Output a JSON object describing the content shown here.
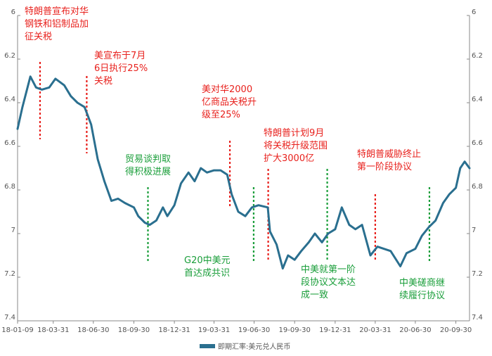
{
  "chart_data": {
    "type": "line",
    "ylim": [
      6,
      7.4
    ],
    "y_inverted": true,
    "y_ticks": [
      "6",
      "6.2",
      "6.4",
      "6.6",
      "6.8",
      "7",
      "7.2",
      "7.4"
    ],
    "x_ticks": [
      "18-01-09",
      "18-03-31",
      "18-06-30",
      "18-09-30",
      "18-12-31",
      "19-03-31",
      "19-06-30",
      "19-09-30",
      "19-12-31",
      "20-03-31",
      "20-06-30",
      "20-09-30"
    ],
    "x_range": [
      "2018-01-09",
      "2020-10-31"
    ],
    "grid": false,
    "legend_position": "bottom",
    "series": [
      {
        "name": "即期汇率:美元兑人民币",
        "color": "#2a6f8f",
        "points": [
          [
            "2018-01-09",
            6.52
          ],
          [
            "2018-01-20",
            6.42
          ],
          [
            "2018-02-07",
            6.28
          ],
          [
            "2018-02-20",
            6.33
          ],
          [
            "2018-03-05",
            6.34
          ],
          [
            "2018-03-22",
            6.33
          ],
          [
            "2018-04-05",
            6.29
          ],
          [
            "2018-04-25",
            6.32
          ],
          [
            "2018-05-10",
            6.37
          ],
          [
            "2018-05-25",
            6.4
          ],
          [
            "2018-06-10",
            6.42
          ],
          [
            "2018-06-25",
            6.5
          ],
          [
            "2018-07-10",
            6.66
          ],
          [
            "2018-07-25",
            6.76
          ],
          [
            "2018-08-10",
            6.85
          ],
          [
            "2018-08-25",
            6.84
          ],
          [
            "2018-09-10",
            6.86
          ],
          [
            "2018-09-30",
            6.88
          ],
          [
            "2018-10-10",
            6.92
          ],
          [
            "2018-10-25",
            6.95
          ],
          [
            "2018-11-05",
            6.96
          ],
          [
            "2018-11-20",
            6.94
          ],
          [
            "2018-12-05",
            6.88
          ],
          [
            "2018-12-15",
            6.92
          ],
          [
            "2018-12-31",
            6.87
          ],
          [
            "2019-01-15",
            6.77
          ],
          [
            "2019-02-01",
            6.72
          ],
          [
            "2019-02-15",
            6.76
          ],
          [
            "2019-03-01",
            6.7
          ],
          [
            "2019-03-15",
            6.72
          ],
          [
            "2019-03-31",
            6.71
          ],
          [
            "2019-04-15",
            6.71
          ],
          [
            "2019-04-30",
            6.73
          ],
          [
            "2019-05-10",
            6.82
          ],
          [
            "2019-05-25",
            6.9
          ],
          [
            "2019-06-10",
            6.92
          ],
          [
            "2019-06-25",
            6.88
          ],
          [
            "2019-07-10",
            6.87
          ],
          [
            "2019-07-31",
            6.88
          ],
          [
            "2019-08-05",
            6.99
          ],
          [
            "2019-08-20",
            7.05
          ],
          [
            "2019-09-03",
            7.16
          ],
          [
            "2019-09-15",
            7.1
          ],
          [
            "2019-09-30",
            7.12
          ],
          [
            "2019-10-15",
            7.08
          ],
          [
            "2019-11-01",
            7.04
          ],
          [
            "2019-11-15",
            7.0
          ],
          [
            "2019-12-01",
            7.04
          ],
          [
            "2019-12-15",
            7.0
          ],
          [
            "2019-12-31",
            6.98
          ],
          [
            "2020-01-15",
            6.88
          ],
          [
            "2020-02-01",
            6.96
          ],
          [
            "2020-02-15",
            6.98
          ],
          [
            "2020-03-01",
            6.96
          ],
          [
            "2020-03-20",
            7.1
          ],
          [
            "2020-04-05",
            7.06
          ],
          [
            "2020-04-20",
            7.07
          ],
          [
            "2020-05-05",
            7.08
          ],
          [
            "2020-05-27",
            7.15
          ],
          [
            "2020-06-10",
            7.09
          ],
          [
            "2020-06-30",
            7.07
          ],
          [
            "2020-07-15",
            7.01
          ],
          [
            "2020-07-31",
            6.97
          ],
          [
            "2020-08-15",
            6.94
          ],
          [
            "2020-09-01",
            6.86
          ],
          [
            "2020-09-15",
            6.82
          ],
          [
            "2020-09-30",
            6.79
          ],
          [
            "2020-10-10",
            6.7
          ],
          [
            "2020-10-20",
            6.67
          ],
          [
            "2020-10-31",
            6.7
          ]
        ]
      }
    ],
    "annotations_red": [
      {
        "id": "a1",
        "lines": [
          "特朗普宣布对华",
          "钢铁和铝制品加",
          "征关税"
        ],
        "date": "2018-03-01"
      },
      {
        "id": "a2",
        "lines": [
          "美宣布于7月",
          "6日执行25%",
          "关税"
        ],
        "date": "2018-06-15"
      },
      {
        "id": "a3",
        "lines": [
          "美对华2000",
          "亿商品关税升",
          "级至25%"
        ],
        "date": "2019-05-06"
      },
      {
        "id": "a4",
        "lines": [
          "特朗普计划9月",
          "将关税升级范围",
          "扩大3000亿"
        ],
        "date": "2019-08-01"
      },
      {
        "id": "a5",
        "lines": [
          "特朗普威胁终止",
          "第一阶段协议"
        ],
        "date": "2020-03-31"
      }
    ],
    "annotations_green": [
      {
        "id": "g1",
        "lines": [
          "贸易谈判取",
          "得积极进展"
        ],
        "date": "2018-11-01"
      },
      {
        "id": "g2",
        "lines": [
          "G20中美元",
          "首达成共识"
        ],
        "date": "2019-06-29"
      },
      {
        "id": "g3",
        "lines": [
          "中美就第一阶",
          "段协议文本达",
          "成一致"
        ],
        "date": "2019-12-13"
      },
      {
        "id": "g4",
        "lines": [
          "中美磋商继",
          "续履行协议"
        ],
        "date": "2020-08-01"
      }
    ],
    "colors": {
      "line": "#2a6f8f",
      "red": "#e8211d",
      "green": "#1a9e3a",
      "axis": "#888888"
    }
  }
}
